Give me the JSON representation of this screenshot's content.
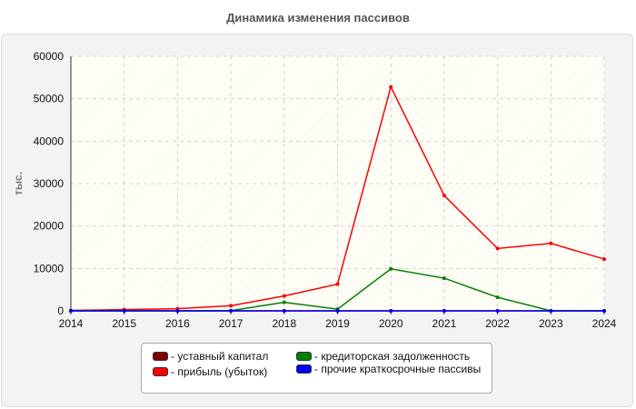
{
  "chart_data": {
    "type": "line",
    "title": "Динамика изменения пассивов",
    "xlabel": "",
    "ylabel": "тыс.",
    "x": [
      2014,
      2015,
      2016,
      2017,
      2018,
      2019,
      2020,
      2021,
      2022,
      2023,
      2024
    ],
    "xlim": [
      2014,
      2024
    ],
    "ylim": [
      0,
      60000
    ],
    "yticks": [
      "0",
      "10000",
      "20000",
      "30000",
      "40000",
      "50000",
      "60000"
    ],
    "xticks": [
      "2014",
      "2015",
      "2016",
      "2017",
      "2018",
      "2019",
      "2020",
      "2021",
      "2022",
      "2023",
      "2024"
    ],
    "grid": true,
    "legend_position": "bottom",
    "series": [
      {
        "name": "- уставный капитал",
        "color": "#800000",
        "values": [
          10,
          10,
          10,
          10,
          10,
          10,
          10,
          10,
          10,
          10,
          10
        ]
      },
      {
        "name": "- прибыль (убыток)",
        "color": "#ff0000",
        "values": [
          100,
          300,
          500,
          1200,
          3500,
          6300,
          52800,
          27200,
          14700,
          15900,
          12200
        ]
      },
      {
        "name": "- кредиторская задолженность",
        "color": "#008000",
        "values": [
          0,
          0,
          0,
          50,
          2000,
          400,
          9900,
          7700,
          3200,
          0,
          0
        ]
      },
      {
        "name": "- прочие краткосрочные пассивы",
        "color": "#0000ff",
        "values": [
          0,
          0,
          0,
          0,
          0,
          0,
          0,
          0,
          0,
          0,
          0
        ]
      }
    ]
  }
}
